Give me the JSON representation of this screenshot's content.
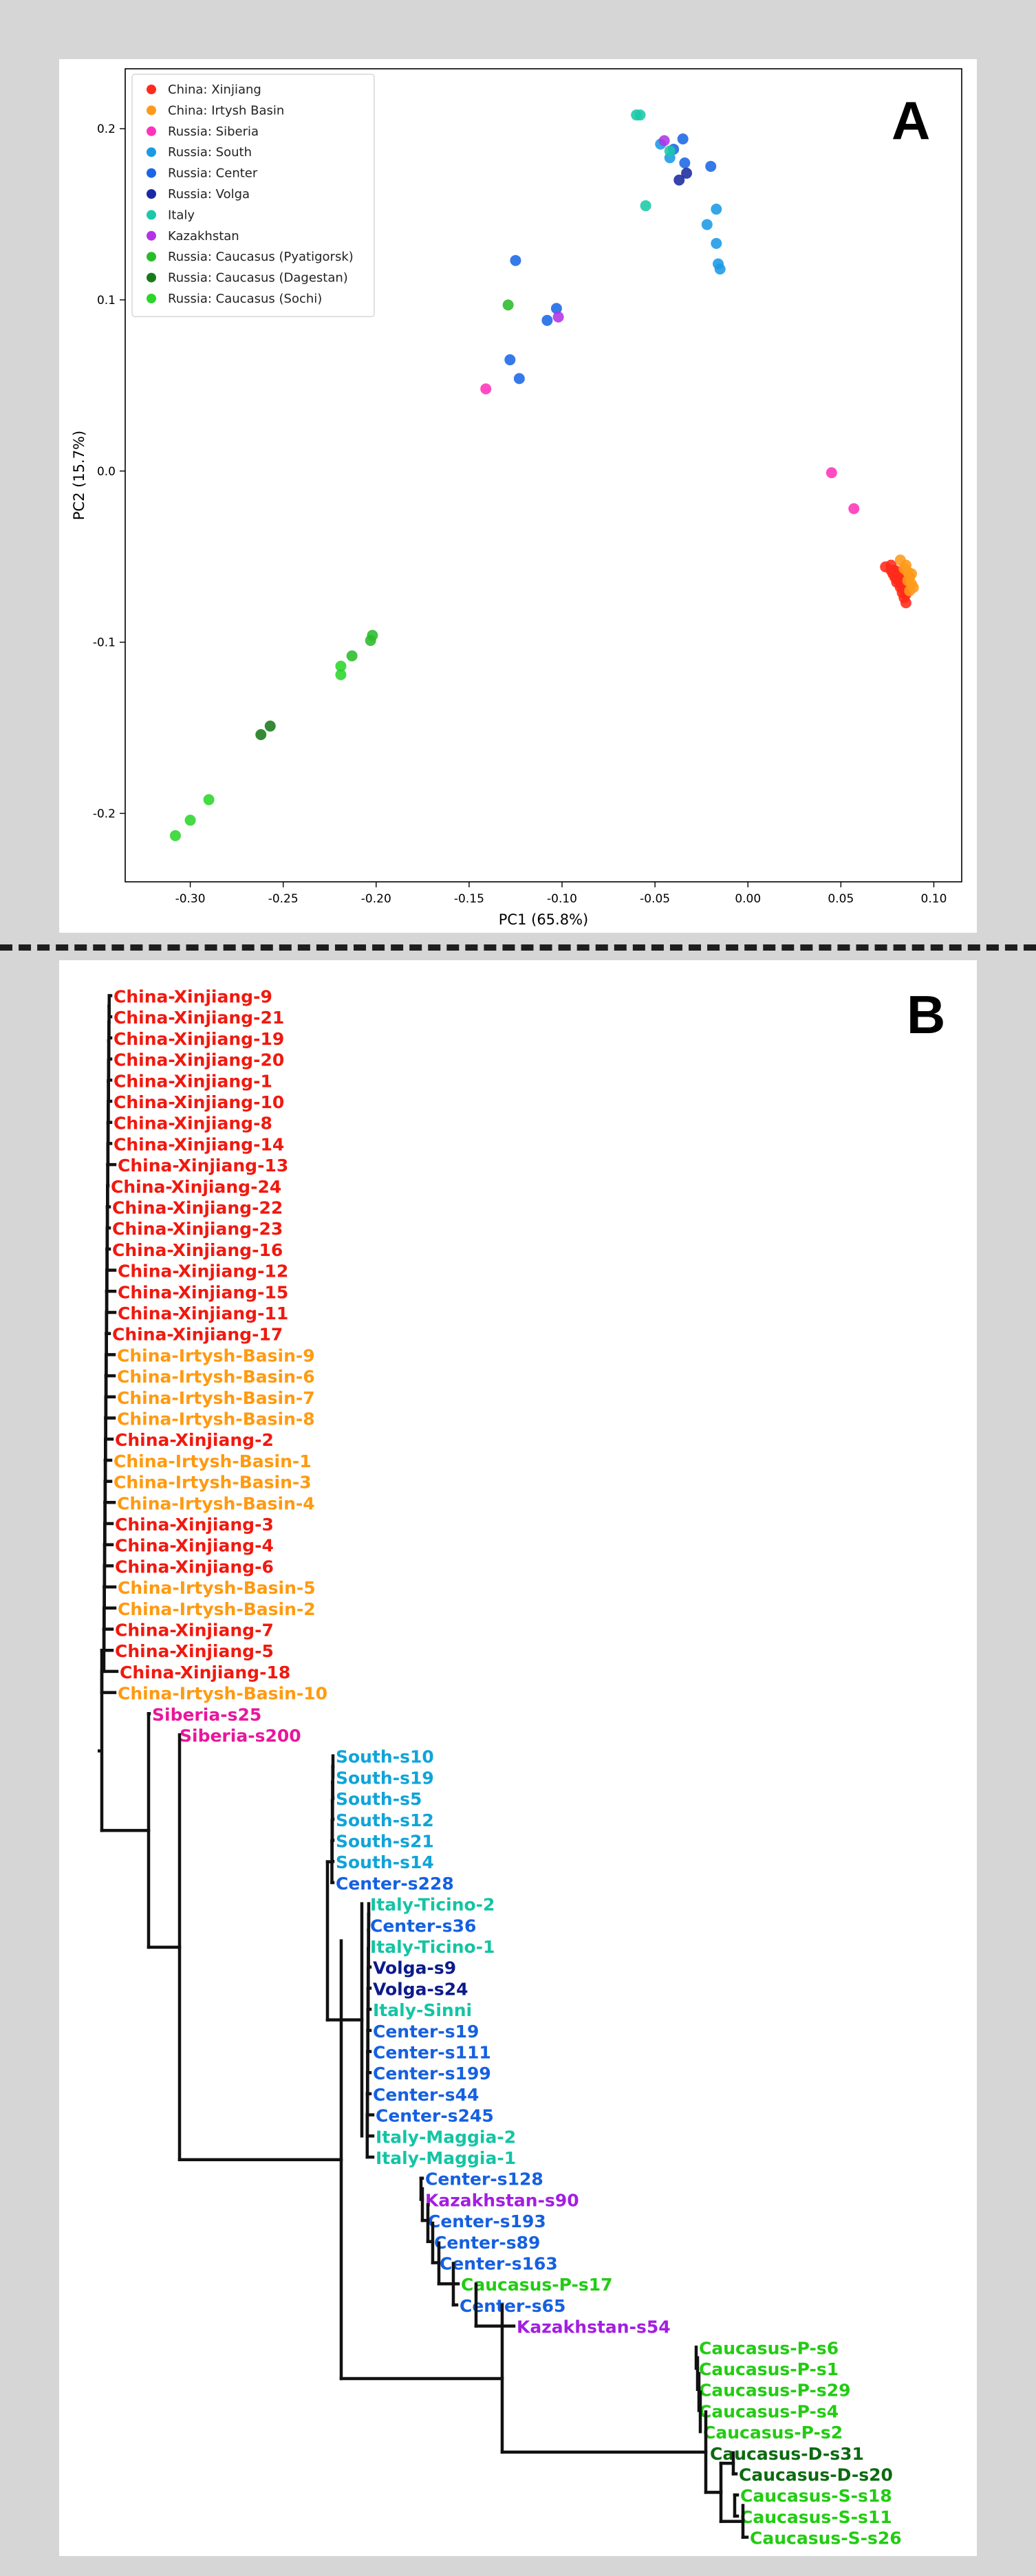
{
  "chart_data": [
    {
      "type": "scatter",
      "panel_label": "A",
      "xlabel": "PC1 (65.8%)",
      "ylabel": "PC2 (15.7%)",
      "xlim": [
        -0.335,
        0.115
      ],
      "ylim": [
        -0.24,
        0.235
      ],
      "xticks": [
        -0.3,
        -0.25,
        -0.2,
        -0.15,
        -0.1,
        -0.05,
        0.0,
        0.05,
        0.1
      ],
      "xtick_labels": [
        "-0.30",
        "-0.25",
        "-0.20",
        "-0.15",
        "-0.10",
        "-0.05",
        "0.00",
        "0.05",
        "0.10"
      ],
      "yticks": [
        -0.2,
        -0.1,
        0.0,
        0.1,
        0.2
      ],
      "ytick_labels": [
        "-0.2",
        "-0.1",
        "0.0",
        "0.1",
        "0.2"
      ],
      "grid": false,
      "legend_position": "top-left",
      "series": [
        {
          "name": "China: Xinjiang",
          "color": "#ff2a1a",
          "points": [
            [
              0.074,
              -0.056
            ],
            [
              0.077,
              -0.055
            ],
            [
              0.079,
              -0.058
            ],
            [
              0.081,
              -0.061
            ],
            [
              0.08,
              -0.065
            ],
            [
              0.082,
              -0.068
            ],
            [
              0.083,
              -0.071
            ],
            [
              0.084,
              -0.074
            ],
            [
              0.085,
              -0.077
            ],
            [
              0.078,
              -0.06
            ],
            [
              0.08,
              -0.063
            ],
            [
              0.082,
              -0.066
            ],
            [
              0.084,
              -0.069
            ],
            [
              0.083,
              -0.064
            ],
            [
              0.081,
              -0.059
            ],
            [
              0.079,
              -0.062
            ],
            [
              0.077,
              -0.058
            ],
            [
              0.085,
              -0.072
            ]
          ]
        },
        {
          "name": "China: Irtysh Basin",
          "color": "#ff9a1a",
          "points": [
            [
              0.082,
              -0.052
            ],
            [
              0.085,
              -0.055
            ],
            [
              0.086,
              -0.059
            ],
            [
              0.087,
              -0.062
            ],
            [
              0.088,
              -0.066
            ],
            [
              0.089,
              -0.068
            ],
            [
              0.084,
              -0.057
            ],
            [
              0.086,
              -0.064
            ],
            [
              0.088,
              -0.06
            ],
            [
              0.087,
              -0.07
            ]
          ]
        },
        {
          "name": "Russia: Siberia",
          "color": "#ff33bb",
          "points": [
            [
              0.045,
              -0.001
            ],
            [
              0.057,
              -0.022
            ],
            [
              -0.141,
              0.048
            ]
          ]
        },
        {
          "name": "Russia: South",
          "color": "#1a9ae6",
          "points": [
            [
              -0.047,
              0.191
            ],
            [
              -0.042,
              0.183
            ],
            [
              -0.022,
              0.144
            ],
            [
              -0.017,
              0.153
            ],
            [
              -0.017,
              0.133
            ],
            [
              -0.016,
              0.121
            ],
            [
              -0.015,
              0.118
            ]
          ]
        },
        {
          "name": "Russia: Center",
          "color": "#1a66e6",
          "points": [
            [
              -0.125,
              0.123
            ],
            [
              -0.128,
              0.065
            ],
            [
              -0.123,
              0.054
            ],
            [
              -0.108,
              0.088
            ],
            [
              -0.103,
              0.095
            ],
            [
              -0.035,
              0.194
            ],
            [
              -0.034,
              0.18
            ],
            [
              -0.02,
              0.178
            ],
            [
              -0.04,
              0.188
            ]
          ]
        },
        {
          "name": "Russia: Volga",
          "color": "#1a2aa0",
          "points": [
            [
              -0.037,
              0.17
            ],
            [
              -0.033,
              0.174
            ]
          ]
        },
        {
          "name": "Italy",
          "color": "#1ac9a8",
          "points": [
            [
              -0.06,
              0.208
            ],
            [
              -0.058,
              0.208
            ],
            [
              -0.042,
              0.187
            ],
            [
              -0.055,
              0.155
            ]
          ]
        },
        {
          "name": "Kazakhstan",
          "color": "#b233e6",
          "points": [
            [
              -0.102,
              0.09
            ],
            [
              -0.045,
              0.193
            ]
          ]
        },
        {
          "name": "Russia: Caucasus (Pyatigorsk)",
          "color": "#2abb2a",
          "points": [
            [
              -0.129,
              0.097
            ],
            [
              -0.202,
              -0.096
            ],
            [
              -0.203,
              -0.099
            ],
            [
              -0.213,
              -0.108
            ]
          ]
        },
        {
          "name": "Russia: Caucasus (Dagestan)",
          "color": "#1a7a1a",
          "points": [
            [
              -0.257,
              -0.149
            ],
            [
              -0.262,
              -0.154
            ]
          ]
        },
        {
          "name": "Russia: Caucasus (Sochi)",
          "color": "#2ad62a",
          "points": [
            [
              -0.219,
              -0.114
            ],
            [
              -0.219,
              -0.119
            ],
            [
              -0.29,
              -0.192
            ],
            [
              -0.3,
              -0.204
            ],
            [
              -0.308,
              -0.213
            ]
          ]
        }
      ]
    },
    {
      "type": "dendrogram",
      "panel_label": "B",
      "leaves": [
        {
          "label": "China-Xinjiang-9",
          "color": "#f0190f"
        },
        {
          "label": "China-Xinjiang-21",
          "color": "#f0190f"
        },
        {
          "label": "China-Xinjiang-19",
          "color": "#f0190f"
        },
        {
          "label": "China-Xinjiang-20",
          "color": "#f0190f"
        },
        {
          "label": "China-Xinjiang-1",
          "color": "#f0190f"
        },
        {
          "label": "China-Xinjiang-10",
          "color": "#f0190f"
        },
        {
          "label": "China-Xinjiang-8",
          "color": "#f0190f"
        },
        {
          "label": "China-Xinjiang-14",
          "color": "#f0190f"
        },
        {
          "label": "China-Xinjiang-13",
          "color": "#f0190f"
        },
        {
          "label": "China-Xinjiang-24",
          "color": "#f0190f"
        },
        {
          "label": "China-Xinjiang-22",
          "color": "#f0190f"
        },
        {
          "label": "China-Xinjiang-23",
          "color": "#f0190f"
        },
        {
          "label": "China-Xinjiang-16",
          "color": "#f0190f"
        },
        {
          "label": "China-Xinjiang-12",
          "color": "#f0190f"
        },
        {
          "label": "China-Xinjiang-15",
          "color": "#f0190f"
        },
        {
          "label": "China-Xinjiang-11",
          "color": "#f0190f"
        },
        {
          "label": "China-Xinjiang-17",
          "color": "#f0190f"
        },
        {
          "label": "China-Irtysh-Basin-9",
          "color": "#ff9a10"
        },
        {
          "label": "China-Irtysh-Basin-6",
          "color": "#ff9a10"
        },
        {
          "label": "China-Irtysh-Basin-7",
          "color": "#ff9a10"
        },
        {
          "label": "China-Irtysh-Basin-8",
          "color": "#ff9a10"
        },
        {
          "label": "China-Xinjiang-2",
          "color": "#f0190f"
        },
        {
          "label": "China-Irtysh-Basin-1",
          "color": "#ff9a10"
        },
        {
          "label": "China-Irtysh-Basin-3",
          "color": "#ff9a10"
        },
        {
          "label": "China-Irtysh-Basin-4",
          "color": "#ff9a10"
        },
        {
          "label": "China-Xinjiang-3",
          "color": "#f0190f"
        },
        {
          "label": "China-Xinjiang-4",
          "color": "#f0190f"
        },
        {
          "label": "China-Xinjiang-6",
          "color": "#f0190f"
        },
        {
          "label": "China-Irtysh-Basin-5",
          "color": "#ff9a10"
        },
        {
          "label": "China-Irtysh-Basin-2",
          "color": "#ff9a10"
        },
        {
          "label": "China-Xinjiang-7",
          "color": "#f0190f"
        },
        {
          "label": "China-Xinjiang-5",
          "color": "#f0190f"
        },
        {
          "label": "China-Xinjiang-18",
          "color": "#f0190f"
        },
        {
          "label": "China-Irtysh-Basin-10",
          "color": "#ff9a10"
        },
        {
          "label": "Siberia-s25",
          "color": "#e8179b"
        },
        {
          "label": "Siberia-s200",
          "color": "#e8179b"
        },
        {
          "label": "South-s10",
          "color": "#10a4d8"
        },
        {
          "label": "South-s19",
          "color": "#10a4d8"
        },
        {
          "label": "South-s5",
          "color": "#10a4d8"
        },
        {
          "label": "South-s12",
          "color": "#10a4d8"
        },
        {
          "label": "South-s21",
          "color": "#10a4d8"
        },
        {
          "label": "South-s14",
          "color": "#10a4d8"
        },
        {
          "label": "Center-s228",
          "color": "#1560e0"
        },
        {
          "label": "Italy-Ticino-2",
          "color": "#14c4a4"
        },
        {
          "label": "Center-s36",
          "color": "#1560e0"
        },
        {
          "label": "Italy-Ticino-1",
          "color": "#14c4a4"
        },
        {
          "label": "Volga-s9",
          "color": "#0c1a8a"
        },
        {
          "label": "Volga-s24",
          "color": "#0c1a8a"
        },
        {
          "label": "Italy-Sinni",
          "color": "#14c4a4"
        },
        {
          "label": "Center-s19",
          "color": "#1560e0"
        },
        {
          "label": "Center-s111",
          "color": "#1560e0"
        },
        {
          "label": "Center-s199",
          "color": "#1560e0"
        },
        {
          "label": "Center-s44",
          "color": "#1560e0"
        },
        {
          "label": "Center-s245",
          "color": "#1560e0"
        },
        {
          "label": "Italy-Maggia-2",
          "color": "#14c4a4"
        },
        {
          "label": "Italy-Maggia-1",
          "color": "#14c4a4"
        },
        {
          "label": "Center-s128",
          "color": "#1560e0"
        },
        {
          "label": "Kazakhstan-s90",
          "color": "#a31ee0"
        },
        {
          "label": "Center-s193",
          "color": "#1560e0"
        },
        {
          "label": "Center-s89",
          "color": "#1560e0"
        },
        {
          "label": "Center-s163",
          "color": "#1560e0"
        },
        {
          "label": "Caucasus-P-s17",
          "color": "#22cc12"
        },
        {
          "label": "Center-s65",
          "color": "#1560e0"
        },
        {
          "label": "Kazakhstan-s54",
          "color": "#a31ee0"
        },
        {
          "label": "Caucasus-P-s6",
          "color": "#22cc12"
        },
        {
          "label": "Caucasus-P-s1",
          "color": "#22cc12"
        },
        {
          "label": "Caucasus-P-s29",
          "color": "#22cc12"
        },
        {
          "label": "Caucasus-P-s4",
          "color": "#22cc12"
        },
        {
          "label": "Caucasus-P-s2",
          "color": "#22cc12"
        },
        {
          "label": "Caucasus-D-s31",
          "color": "#0c6a10"
        },
        {
          "label": "Caucasus-D-s20",
          "color": "#0c6a10"
        },
        {
          "label": "Caucasus-S-s18",
          "color": "#22cc12"
        },
        {
          "label": "Caucasus-S-s11",
          "color": "#22cc12"
        },
        {
          "label": "Caucasus-S-s26",
          "color": "#22cc12"
        }
      ]
    }
  ]
}
